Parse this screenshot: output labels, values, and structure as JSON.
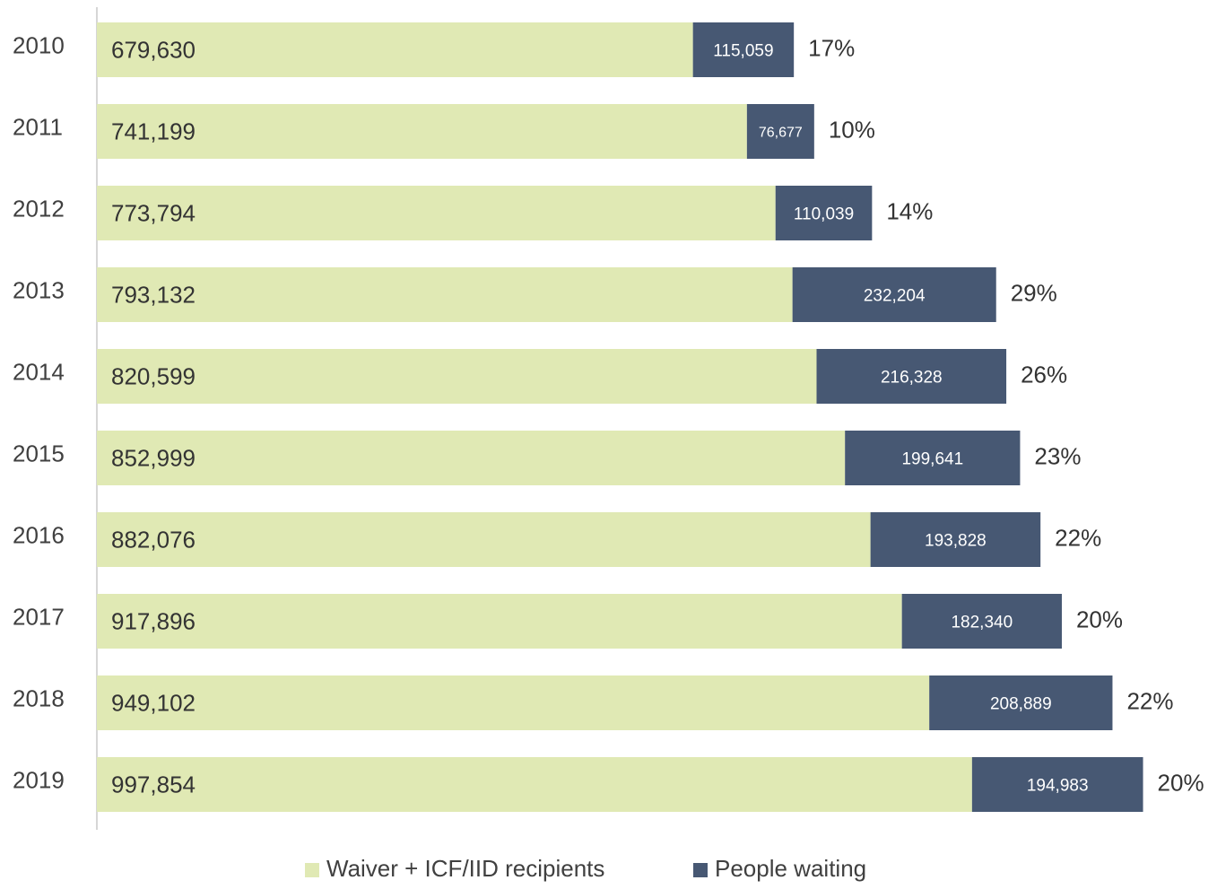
{
  "chart_data": {
    "type": "stacked-barh",
    "categories": [
      "2010",
      "2011",
      "2012",
      "2013",
      "2014",
      "2015",
      "2016",
      "2017",
      "2018",
      "2019"
    ],
    "series": [
      {
        "name": "Waiver + ICF/IID recipients",
        "color": "#e0e9b4",
        "values": [
          679630,
          741199,
          773794,
          793132,
          820599,
          852999,
          882076,
          917896,
          949102,
          997854
        ],
        "value_labels": [
          "679,630",
          "741,199",
          "773,794",
          "793,132",
          "820,599",
          "852,999",
          "882,076",
          "917,896",
          "949,102",
          "997,854"
        ]
      },
      {
        "name": "People waiting",
        "color": "#475873",
        "values": [
          115059,
          76677,
          110039,
          232204,
          216328,
          199641,
          193828,
          182340,
          208889,
          194983
        ],
        "value_labels": [
          "115,059",
          "76,677",
          "110,039",
          "232,204",
          "216,328",
          "199,641",
          "193,828",
          "182,340",
          "208,889",
          "194,983"
        ]
      }
    ],
    "percent_labels": [
      "17%",
      "10%",
      "14%",
      "29%",
      "26%",
      "23%",
      "22%",
      "20%",
      "22%",
      "20%"
    ],
    "xlim": [
      0,
      1270000
    ],
    "legend": "bottom"
  }
}
